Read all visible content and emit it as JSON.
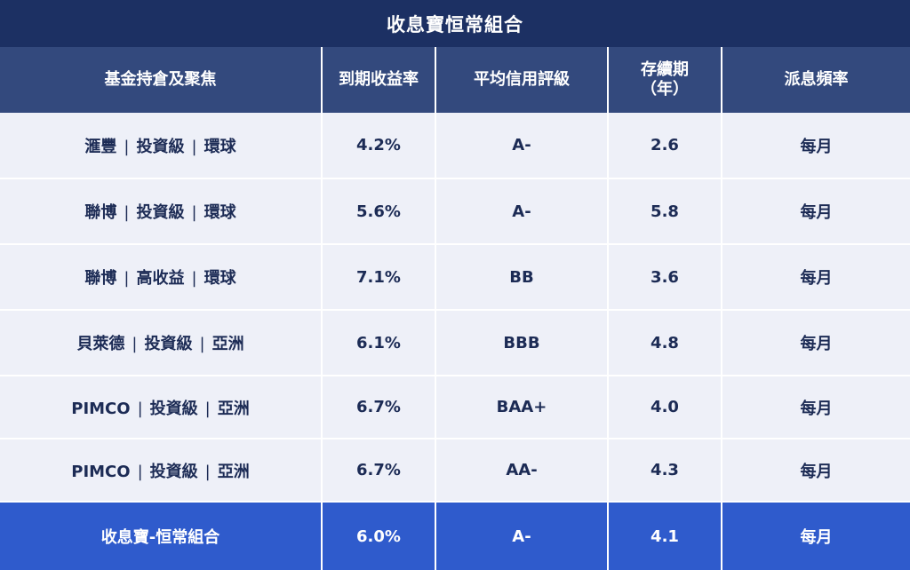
{
  "title": "收息寶恒常組合",
  "headers": [
    "基金持倉及聚焦",
    "到期收益率",
    "平均信用評級",
    "存續期\n（年）",
    "派息頻率"
  ],
  "rows": [
    {
      "fund": [
        "滙豐",
        "投資級",
        "環球"
      ],
      "ytm": "4.2%",
      "rating": "A-",
      "duration": "2.6",
      "frequency": "每月"
    },
    {
      "fund": [
        "聯博",
        "投資級",
        "環球"
      ],
      "ytm": "5.6%",
      "rating": "A-",
      "duration": "5.8",
      "frequency": "每月"
    },
    {
      "fund": [
        "聯博",
        "高收益",
        "環球"
      ],
      "ytm": "7.1%",
      "rating": "BB",
      "duration": "3.6",
      "frequency": "每月"
    },
    {
      "fund": [
        "貝萊德",
        "投資級",
        "亞洲"
      ],
      "ytm": "6.1%",
      "rating": "BBB",
      "duration": "4.8",
      "frequency": "每月"
    },
    {
      "fund": [
        "PIMCO",
        "投資級",
        "亞洲"
      ],
      "ytm": "6.7%",
      "rating": "BAA+",
      "duration": "4.0",
      "frequency": "每月"
    },
    {
      "fund": [
        "PIMCO",
        "投資級",
        "亞洲"
      ],
      "ytm": "6.7%",
      "rating": "AA-",
      "duration": "4.3",
      "frequency": "每月"
    }
  ],
  "total": {
    "fund": "收息寶-恒常組合",
    "ytm": "6.0%",
    "rating": "A-",
    "duration": "4.1",
    "frequency": "每月"
  },
  "colors": {
    "title_bg": "#1c3063",
    "header_bg": "#33497d",
    "row_bg": "#eef0f8",
    "total_bg": "#2f5bcc"
  }
}
